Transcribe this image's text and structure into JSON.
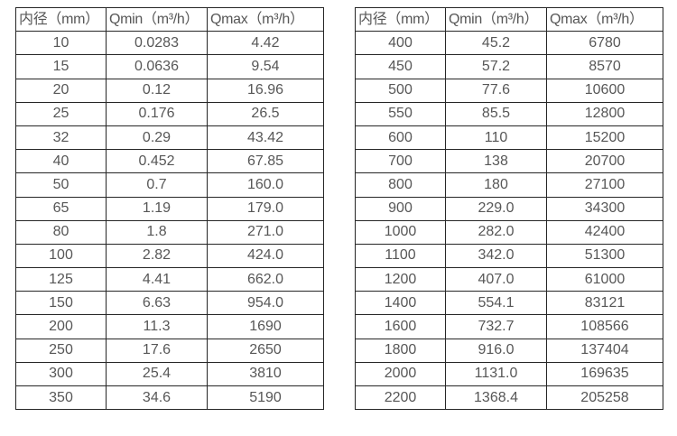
{
  "page": {
    "background": "#ffffff"
  },
  "colors": {
    "border": "#262626",
    "text": "#575757"
  },
  "tables": [
    {
      "name": "flow-table-small-diameters",
      "headers": [
        "内径（mm）",
        "Qmin（m³/h）",
        "Qmax（m³/h）"
      ],
      "rows": [
        [
          "10",
          "0.0283",
          "4.42"
        ],
        [
          "15",
          "0.0636",
          "9.54"
        ],
        [
          "20",
          "0.12",
          "16.96"
        ],
        [
          "25",
          "0.176",
          "26.5"
        ],
        [
          "32",
          "0.29",
          "43.42"
        ],
        [
          "40",
          "0.452",
          "67.85"
        ],
        [
          "50",
          "0.7",
          "160.0"
        ],
        [
          "65",
          "1.19",
          "179.0"
        ],
        [
          "80",
          "1.8",
          "271.0"
        ],
        [
          "100",
          "2.82",
          "424.0"
        ],
        [
          "125",
          "4.41",
          "662.0"
        ],
        [
          "150",
          "6.63",
          "954.0"
        ],
        [
          "200",
          "11.3",
          "1690"
        ],
        [
          "250",
          "17.6",
          "2650"
        ],
        [
          "300",
          "25.4",
          "3810"
        ],
        [
          "350",
          "34.6",
          "5190"
        ]
      ]
    },
    {
      "name": "flow-table-large-diameters",
      "headers": [
        "内径（mm）",
        "Qmin（m³/h）",
        "Qmax（m³/h）"
      ],
      "rows": [
        [
          "400",
          "45.2",
          "6780"
        ],
        [
          "450",
          "57.2",
          "8570"
        ],
        [
          "500",
          "77.6",
          "10600"
        ],
        [
          "550",
          "85.5",
          "12800"
        ],
        [
          "600",
          "110",
          "15200"
        ],
        [
          "700",
          "138",
          "20700"
        ],
        [
          "800",
          "180",
          "27100"
        ],
        [
          "900",
          "229.0",
          "34300"
        ],
        [
          "1000",
          "282.0",
          "42400"
        ],
        [
          "1100",
          "342.0",
          "51300"
        ],
        [
          "1200",
          "407.0",
          "61000"
        ],
        [
          "1400",
          "554.1",
          "83121"
        ],
        [
          "1600",
          "732.7",
          "108566"
        ],
        [
          "1800",
          "916.0",
          "137404"
        ],
        [
          "2000",
          "1131.0",
          "169635"
        ],
        [
          "2200",
          "1368.4",
          "205258"
        ]
      ]
    }
  ]
}
